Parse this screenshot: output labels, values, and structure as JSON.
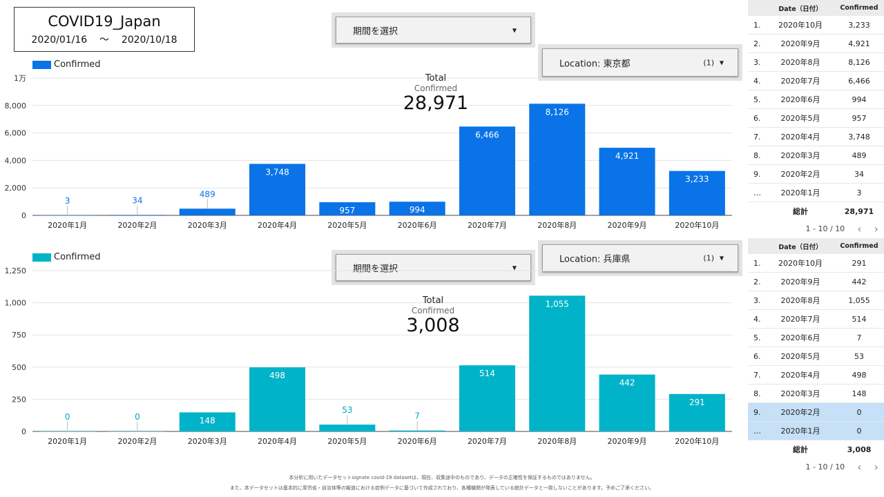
{
  "report": {
    "title": "COVID19_Japan",
    "date_start": "2020/01/16",
    "date_sep": "〜",
    "date_end": "2020/10/18"
  },
  "charts": [
    {
      "period_label": "期間を選択",
      "location_label": "Location: 東京都",
      "location_count": "(1)",
      "legend_label": "Confirmed",
      "color": "#0a73e8",
      "label_color_outside": "#0a73e8",
      "kpi": {
        "label1": "Total",
        "label2": "Confirmed",
        "value": "28,971"
      },
      "table": {
        "col_date": "Date（日付）",
        "col_value": "Confirmed",
        "rows": [
          {
            "no": "1.",
            "date": "2020年10月",
            "value": "3,233"
          },
          {
            "no": "2.",
            "date": "2020年9月",
            "value": "4,921"
          },
          {
            "no": "3.",
            "date": "2020年8月",
            "value": "8,126"
          },
          {
            "no": "4.",
            "date": "2020年7月",
            "value": "6,466"
          },
          {
            "no": "5.",
            "date": "2020年6月",
            "value": "994"
          },
          {
            "no": "6.",
            "date": "2020年5月",
            "value": "957"
          },
          {
            "no": "7.",
            "date": "2020年4月",
            "value": "3,748"
          },
          {
            "no": "8.",
            "date": "2020年3月",
            "value": "489"
          },
          {
            "no": "9.",
            "date": "2020年2月",
            "value": "34"
          },
          {
            "no": "…",
            "date": "2020年1月",
            "value": "3"
          }
        ],
        "total_label": "総計",
        "total_value": "28,971",
        "pagination": "1 - 10 / 10",
        "prev_icon": "‹",
        "next_icon": "›"
      }
    },
    {
      "period_label": "期間を選択",
      "location_label": "Location: 兵庫県",
      "location_count": "(1)",
      "legend_label": "Confirmed",
      "color": "#00b3c9",
      "label_color_outside": "#00a6c4",
      "kpi": {
        "label1": "Total",
        "label2": "Confirmed",
        "value": "3,008"
      },
      "table": {
        "col_date": "Date（日付）",
        "col_value": "Confirmed",
        "rows": [
          {
            "no": "1.",
            "date": "2020年10月",
            "value": "291"
          },
          {
            "no": "2.",
            "date": "2020年9月",
            "value": "442"
          },
          {
            "no": "3.",
            "date": "2020年8月",
            "value": "1,055"
          },
          {
            "no": "4.",
            "date": "2020年7月",
            "value": "514"
          },
          {
            "no": "5.",
            "date": "2020年6月",
            "value": "7"
          },
          {
            "no": "6.",
            "date": "2020年5月",
            "value": "53"
          },
          {
            "no": "7.",
            "date": "2020年4月",
            "value": "498"
          },
          {
            "no": "8.",
            "date": "2020年3月",
            "value": "148"
          },
          {
            "no": "9.",
            "date": "2020年2月",
            "value": "0",
            "selected": true
          },
          {
            "no": "…",
            "date": "2020年1月",
            "value": "0",
            "selected": true
          }
        ],
        "total_label": "総計",
        "total_value": "3,008",
        "pagination": "1 - 10 / 10",
        "prev_icon": "‹",
        "next_icon": "›"
      }
    }
  ],
  "chart_data": [
    {
      "type": "bar",
      "categories": [
        "2020年1月",
        "2020年2月",
        "2020年3月",
        "2020年4月",
        "2020年5月",
        "2020年6月",
        "2020年7月",
        "2020年8月",
        "2020年9月",
        "2020年10月"
      ],
      "series": [
        {
          "name": "Confirmed",
          "values": [
            3,
            34,
            489,
            3748,
            957,
            994,
            6466,
            8126,
            4921,
            3233
          ]
        }
      ],
      "data_labels": [
        "3",
        "34",
        "489",
        "3,748",
        "957",
        "994",
        "6,466",
        "8,126",
        "4,921",
        "3,233"
      ],
      "ylim": [
        0,
        10000
      ],
      "yticks": [
        0,
        2000,
        4000,
        6000,
        8000,
        10000
      ],
      "ytick_labels": [
        "0",
        "2,000",
        "4,000",
        "6,000",
        "8,000",
        "1万"
      ],
      "legend": "top-left",
      "grid": true
    },
    {
      "type": "bar",
      "categories": [
        "2020年1月",
        "2020年2月",
        "2020年3月",
        "2020年4月",
        "2020年5月",
        "2020年6月",
        "2020年7月",
        "2020年8月",
        "2020年9月",
        "2020年10月"
      ],
      "series": [
        {
          "name": "Confirmed",
          "values": [
            0,
            0,
            148,
            498,
            53,
            7,
            514,
            1055,
            442,
            291
          ]
        }
      ],
      "data_labels": [
        "0",
        "0",
        "148",
        "498",
        "53",
        "7",
        "514",
        "1,055",
        "442",
        "291"
      ],
      "ylim": [
        0,
        1250
      ],
      "yticks": [
        0,
        250,
        500,
        750,
        1000,
        1250
      ],
      "ytick_labels": [
        "0",
        "250",
        "500",
        "750",
        "1,000",
        "1,250"
      ],
      "legend": "top-left",
      "grid": true
    }
  ],
  "footer": {
    "line1": "本分析に用いたデータセットsignate covid-19 datasetは、現在、収集途中のものであり、データの正確性を保証するものではありません。",
    "line2": "また、本データセットは基本的に厚労省・自治体等の報道における症例データに基づいて作成されており、各種機関が発表している統計データと一致しないことがあります。予めご了承ください。"
  }
}
